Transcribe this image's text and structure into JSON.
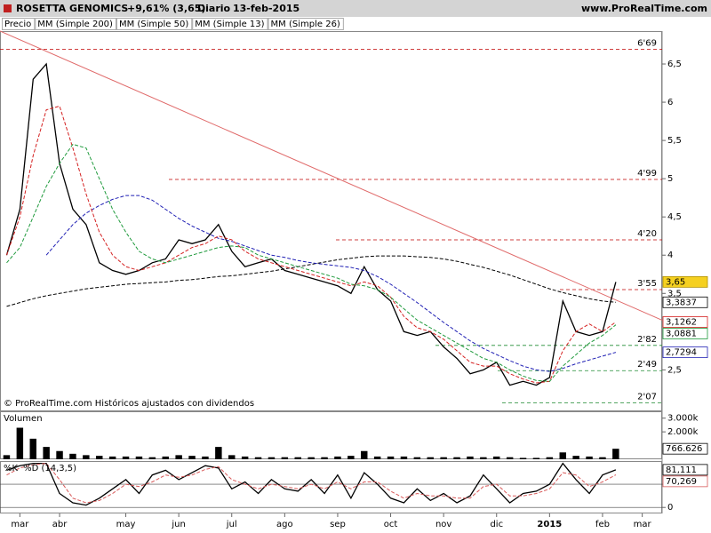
{
  "header": {
    "symbol": "ROSETTA GENOMICS",
    "change": "+9,61% (3,65)",
    "period": "Diario",
    "date": "13-feb-2015",
    "site": "www.ProRealTime.com"
  },
  "chart_data": [
    {
      "type": "line",
      "footnote": "© ProRealTime.com  Históricos ajustados con dividendos",
      "ylim": [
        1.97,
        6.93
      ],
      "yticks": [
        {
          "value": 2.5,
          "label": "2,5"
        },
        {
          "value": 3.5,
          "label": "3,5"
        },
        4,
        {
          "value": 4.5,
          "label": "4,5"
        },
        5,
        {
          "value": 5.5,
          "label": "5,5"
        },
        6,
        {
          "value": 6.5,
          "label": "6,5"
        }
      ],
      "series": [
        {
          "name": "Precio",
          "color": "#000000",
          "dashed": false,
          "values": [
            4.0,
            4.6,
            6.3,
            6.5,
            5.2,
            4.6,
            4.4,
            3.9,
            3.8,
            3.75,
            3.8,
            3.9,
            3.95,
            4.2,
            4.15,
            4.2,
            4.4,
            4.05,
            3.85,
            3.9,
            3.95,
            3.8,
            3.75,
            3.7,
            3.65,
            3.6,
            3.5,
            3.85,
            3.55,
            3.4,
            3.0,
            2.95,
            3.0,
            2.8,
            2.65,
            2.45,
            2.5,
            2.6,
            2.3,
            2.35,
            2.3,
            2.4,
            3.4,
            3.0,
            2.95,
            3.0,
            3.65,
            null,
            null,
            null
          ],
          "value_labels": [
            null,
            null,
            null,
            null,
            null,
            null,
            null,
            null,
            null,
            null,
            null,
            null,
            null,
            null,
            null,
            null,
            null,
            null,
            null,
            null,
            null,
            null,
            null,
            null,
            null,
            null,
            null,
            null,
            null,
            null,
            null,
            null,
            null,
            null,
            null,
            null,
            null,
            null,
            null,
            null,
            null,
            null,
            null,
            null,
            null,
            null,
            "3,65",
            null,
            null,
            null
          ]
        },
        {
          "name": "MM (Simple 200)",
          "color": "#000000",
          "dashed": true,
          "values": [
            3.33,
            3.38,
            3.43,
            3.47,
            3.5,
            3.53,
            3.56,
            3.58,
            3.6,
            3.62,
            3.63,
            3.64,
            3.65,
            3.67,
            3.68,
            3.7,
            3.72,
            3.73,
            3.75,
            3.77,
            3.79,
            3.82,
            3.85,
            3.88,
            3.91,
            3.94,
            3.96,
            3.98,
            3.99,
            3.99,
            3.99,
            3.98,
            3.97,
            3.95,
            3.92,
            3.88,
            3.84,
            3.79,
            3.74,
            3.68,
            3.62,
            3.56,
            3.51,
            3.47,
            3.43,
            3.4,
            3.3837,
            null,
            null,
            null
          ],
          "value_labels": [
            null,
            null,
            null,
            null,
            null,
            null,
            null,
            null,
            null,
            null,
            null,
            null,
            null,
            null,
            null,
            null,
            null,
            null,
            null,
            null,
            null,
            null,
            null,
            null,
            null,
            null,
            null,
            null,
            null,
            null,
            null,
            null,
            null,
            null,
            null,
            null,
            null,
            null,
            null,
            null,
            null,
            null,
            null,
            null,
            null,
            null,
            "3,3837",
            null,
            null,
            null
          ]
        },
        {
          "name": "MM (Simple 50)",
          "color": "#1f1fb4",
          "dashed": true,
          "values": [
            null,
            null,
            null,
            4.0,
            4.2,
            4.4,
            4.55,
            4.65,
            4.73,
            4.78,
            4.78,
            4.72,
            4.6,
            4.48,
            4.38,
            4.3,
            4.22,
            4.18,
            4.12,
            4.06,
            4.0,
            3.97,
            3.93,
            3.9,
            3.88,
            3.86,
            3.84,
            3.8,
            3.72,
            3.62,
            3.5,
            3.38,
            3.25,
            3.12,
            3.0,
            2.88,
            2.78,
            2.7,
            2.62,
            2.55,
            2.5,
            2.48,
            2.52,
            2.58,
            2.63,
            2.68,
            2.7294,
            null,
            null,
            null
          ],
          "value_labels": [
            null,
            null,
            null,
            null,
            null,
            null,
            null,
            null,
            null,
            null,
            null,
            null,
            null,
            null,
            null,
            null,
            null,
            null,
            null,
            null,
            null,
            null,
            null,
            null,
            null,
            null,
            null,
            null,
            null,
            null,
            null,
            null,
            null,
            null,
            null,
            null,
            null,
            null,
            null,
            null,
            null,
            null,
            null,
            null,
            null,
            null,
            "2,7294",
            null,
            null,
            null
          ]
        },
        {
          "name": "MM (Simple 13)",
          "color": "#d42020",
          "dashed": true,
          "values": [
            4.0,
            4.5,
            5.3,
            5.9,
            5.95,
            5.4,
            4.8,
            4.3,
            4.0,
            3.85,
            3.8,
            3.85,
            3.9,
            4.0,
            4.1,
            4.15,
            4.25,
            4.2,
            4.05,
            3.95,
            3.9,
            3.85,
            3.8,
            3.75,
            3.7,
            3.65,
            3.6,
            3.65,
            3.6,
            3.45,
            3.2,
            3.05,
            3.0,
            2.9,
            2.75,
            2.6,
            2.55,
            2.55,
            2.45,
            2.38,
            2.33,
            2.35,
            2.75,
            3.0,
            3.1,
            3.0,
            3.1262,
            null,
            null,
            null
          ],
          "value_labels": [
            null,
            null,
            null,
            null,
            null,
            null,
            null,
            null,
            null,
            null,
            null,
            null,
            null,
            null,
            null,
            null,
            null,
            null,
            null,
            null,
            null,
            null,
            null,
            null,
            null,
            null,
            null,
            null,
            null,
            null,
            null,
            null,
            null,
            null,
            null,
            null,
            null,
            null,
            null,
            null,
            null,
            null,
            null,
            null,
            null,
            null,
            "3,1262",
            null,
            null,
            null
          ]
        },
        {
          "name": "MM (Simple 26)",
          "color": "#1f9a3c",
          "dashed": true,
          "values": [
            3.9,
            4.1,
            4.5,
            4.9,
            5.2,
            5.45,
            5.4,
            5.0,
            4.6,
            4.3,
            4.05,
            3.95,
            3.9,
            3.95,
            4.0,
            4.05,
            4.1,
            4.12,
            4.1,
            4.0,
            3.95,
            3.9,
            3.85,
            3.8,
            3.75,
            3.7,
            3.62,
            3.6,
            3.55,
            3.45,
            3.3,
            3.15,
            3.05,
            2.95,
            2.85,
            2.75,
            2.65,
            2.6,
            2.5,
            2.42,
            2.36,
            2.35,
            2.55,
            2.7,
            2.85,
            2.95,
            3.0881,
            null,
            null,
            null
          ],
          "value_labels": [
            null,
            null,
            null,
            null,
            null,
            null,
            null,
            null,
            null,
            null,
            null,
            null,
            null,
            null,
            null,
            null,
            null,
            null,
            null,
            null,
            null,
            null,
            null,
            null,
            null,
            null,
            null,
            null,
            null,
            null,
            null,
            null,
            null,
            null,
            null,
            null,
            null,
            null,
            null,
            null,
            null,
            null,
            null,
            null,
            null,
            null,
            "3,0881",
            null,
            null,
            null
          ]
        }
      ],
      "levels": [
        {
          "value": 6.69,
          "label": "6'69",
          "color": "#c00000"
        },
        {
          "value": 4.99,
          "label": "4'99",
          "color": "#c00000"
        },
        {
          "value": 4.2,
          "label": "4'20",
          "color": "#c00000"
        },
        {
          "value": 3.55,
          "label": "3'55",
          "color": "#c00000"
        },
        {
          "value": 2.82,
          "label": "2'82",
          "color": "#1f8a30"
        },
        {
          "value": 2.49,
          "label": "2'49",
          "color": "#1f8a30"
        },
        {
          "value": 2.07,
          "label": "2'07",
          "color": "#1f8a30"
        }
      ],
      "trendline": {
        "values": [
          6.93,
          3.15
        ],
        "color": "#e06a6a"
      }
    },
    {
      "type": "bar",
      "title": "Volumen",
      "color": "#000000",
      "ylim": [
        0,
        3500000
      ],
      "yticks": [
        {
          "value": 2000000,
          "label": "2.000k"
        },
        {
          "value": 3000000,
          "label": "3.000k"
        }
      ],
      "values": [
        300000,
        2300000,
        1500000,
        900000,
        600000,
        400000,
        300000,
        250000,
        200000,
        200000,
        200000,
        150000,
        200000,
        300000,
        250000,
        200000,
        900000,
        300000,
        200000,
        150000,
        150000,
        150000,
        150000,
        150000,
        150000,
        200000,
        250000,
        600000,
        200000,
        200000,
        200000,
        150000,
        150000,
        150000,
        150000,
        200000,
        150000,
        200000,
        150000,
        100000,
        100000,
        150000,
        500000,
        250000,
        200000,
        150000,
        766626,
        null,
        null,
        null
      ],
      "value_labels": [
        null,
        null,
        null,
        null,
        null,
        null,
        null,
        null,
        null,
        null,
        null,
        null,
        null,
        null,
        null,
        null,
        null,
        null,
        null,
        null,
        null,
        null,
        null,
        null,
        null,
        null,
        null,
        null,
        null,
        null,
        null,
        null,
        null,
        null,
        null,
        null,
        null,
        null,
        null,
        null,
        null,
        null,
        null,
        null,
        null,
        null,
        "766.626",
        null,
        null,
        null
      ]
    },
    {
      "type": "line",
      "grid": true,
      "ylim": [
        -13,
        100
      ],
      "yticks": [
        0,
        50
      ],
      "categories": [
        null,
        "mar",
        null,
        null,
        "abr",
        null,
        null,
        null,
        null,
        "may",
        null,
        null,
        null,
        "jun",
        null,
        null,
        null,
        "jul",
        null,
        null,
        null,
        "ago",
        null,
        null,
        null,
        "sep",
        null,
        null,
        null,
        "oct",
        null,
        null,
        null,
        "nov",
        null,
        null,
        null,
        "dic",
        null,
        null,
        null,
        "2015",
        null,
        null,
        null,
        "feb",
        null,
        null,
        "mar",
        null
      ],
      "series": [
        {
          "name": "%K",
          "color": "#000000",
          "dashed": false,
          "values": [
            80,
            90,
            95,
            95,
            30,
            10,
            5,
            20,
            40,
            60,
            30,
            70,
            80,
            60,
            75,
            90,
            85,
            40,
            55,
            30,
            60,
            40,
            35,
            60,
            30,
            70,
            20,
            75,
            50,
            20,
            10,
            40,
            15,
            30,
            10,
            25,
            70,
            40,
            10,
            30,
            35,
            50,
            95,
            60,
            30,
            70,
            81.111,
            null,
            null,
            null
          ],
          "value_labels": [
            null,
            null,
            null,
            null,
            null,
            null,
            null,
            null,
            null,
            null,
            null,
            null,
            null,
            null,
            null,
            null,
            null,
            null,
            null,
            null,
            null,
            null,
            null,
            null,
            null,
            null,
            null,
            null,
            null,
            null,
            null,
            null,
            null,
            null,
            null,
            null,
            null,
            null,
            null,
            null,
            null,
            null,
            null,
            null,
            null,
            null,
            "81,111",
            null,
            null,
            null
          ]
        },
        {
          "name": "%D (14,3,5)",
          "color": "#d85a5a",
          "dashed": true,
          "values": [
            70,
            85,
            92,
            95,
            60,
            20,
            10,
            15,
            30,
            50,
            45,
            55,
            70,
            65,
            70,
            82,
            88,
            60,
            50,
            40,
            50,
            45,
            40,
            50,
            40,
            55,
            40,
            55,
            55,
            35,
            20,
            30,
            25,
            25,
            20,
            20,
            45,
            50,
            25,
            25,
            30,
            40,
            75,
            70,
            45,
            55,
            70.269,
            null,
            null,
            null
          ],
          "value_labels": [
            null,
            null,
            null,
            null,
            null,
            null,
            null,
            null,
            null,
            null,
            null,
            null,
            null,
            null,
            null,
            null,
            null,
            null,
            null,
            null,
            null,
            null,
            null,
            null,
            null,
            null,
            null,
            null,
            null,
            null,
            null,
            null,
            null,
            null,
            null,
            null,
            null,
            null,
            null,
            null,
            null,
            null,
            null,
            null,
            null,
            null,
            "70,269",
            null,
            null,
            null
          ]
        }
      ]
    }
  ]
}
